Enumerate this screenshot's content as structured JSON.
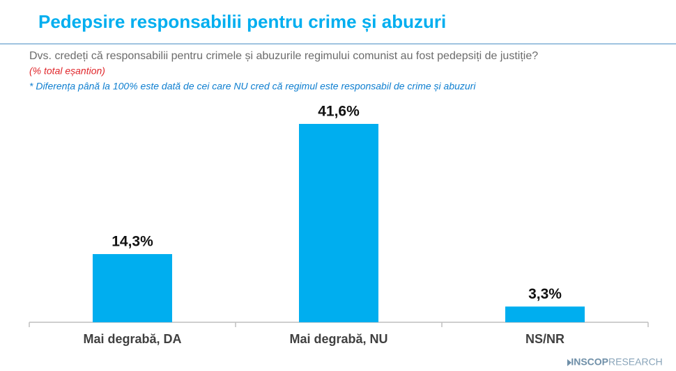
{
  "chart_data": {
    "type": "bar",
    "title": "Pedepsire responsabilii pentru crime și abuzuri",
    "subtitle": "Dvs. credeți că responsabilii pentru crimele și abuzurile regimului comunist au fost pedepsiți de justiție?",
    "base_note": "(% total eșantion)",
    "footnote": "* Diferența până la 100% este dată de cei care NU cred că regimul este responsabil de crime și abuzuri",
    "categories": [
      "Mai degrabă, DA",
      "Mai degrabă, NU",
      "NS/NR"
    ],
    "values": [
      14.3,
      41.6,
      3.3
    ],
    "value_labels": [
      "14,3%",
      "41,6%",
      "3,3%"
    ],
    "color": "#00aeef",
    "logo": {
      "brand": "INSCOP",
      "suffix": "RESEARCH"
    }
  }
}
